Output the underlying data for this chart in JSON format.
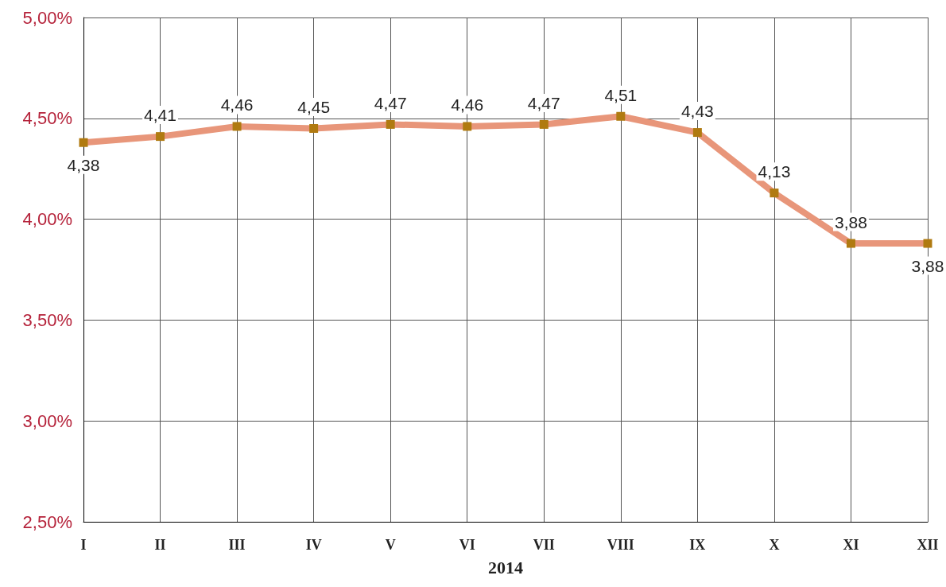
{
  "chart_data": {
    "type": "line",
    "xlabel": "2014",
    "categories": [
      "I",
      "II",
      "III",
      "IV",
      "V",
      "VI",
      "VII",
      "VIII",
      "IX",
      "X",
      "XI",
      "XII"
    ],
    "series": [
      {
        "color": "#e8967a",
        "values": [
          4.38,
          4.41,
          4.46,
          4.45,
          4.47,
          4.46,
          4.47,
          4.51,
          4.43,
          4.13,
          3.88,
          3.88
        ],
        "value_labels": [
          "4,38",
          "4,41",
          "4,46",
          "4,45",
          "4,47",
          "4,46",
          "4,47",
          "4,51",
          "4,43",
          "4,13",
          "3,88",
          "3,88"
        ]
      }
    ],
    "ylim": [
      2.5,
      5.0
    ],
    "yticks": [
      {
        "value": 2.5,
        "label": "2,50%"
      },
      {
        "value": 3.0,
        "label": "3,00%"
      },
      {
        "value": 3.5,
        "label": "3,50%"
      },
      {
        "value": 4.0,
        "label": "4,00%"
      },
      {
        "value": 4.5,
        "label": "4,50%"
      },
      {
        "value": 5.0,
        "label": "5,00%"
      }
    ],
    "grid": true,
    "marker": "square",
    "line_style": "solid"
  }
}
